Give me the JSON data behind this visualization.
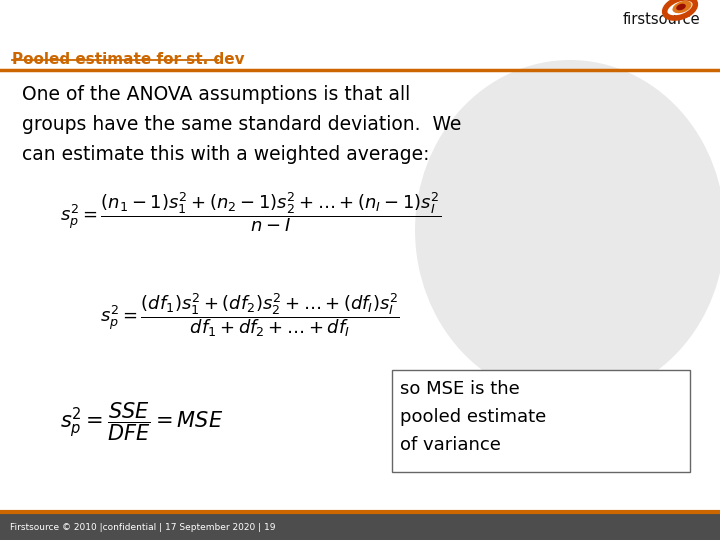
{
  "background_color": "#ffffff",
  "footer_bg_color": "#4d4d4d",
  "title_text": "Pooled estimate for st. dev",
  "title_color": "#CC6600",
  "body_line1": "One of the ANOVA assumptions is that all",
  "body_line2": "groups have the same standard deviation.  We",
  "body_line3": "can estimate this with a weighted average:",
  "body_color": "#000000",
  "header_line_color": "#CC6600",
  "footer_line_color": "#CC6600",
  "footer_text": "Firstsource © 2010 |confidential | 17 September 2020 | 19",
  "formula1": "$s_p^2 = \\dfrac{(n_1-1)s_1^2 + (n_2-1)s_2^2 + \\ldots+ (n_I-1)s_I^2}{n - I}$",
  "formula2": "$s_p^2 = \\dfrac{(df_1)s_1^2 + (df_2)s_2^2 + \\ldots+ (df_I)s_I^2}{df_1 + df_2 + \\ldots+ df_I}$",
  "formula3": "$s_p^2 = \\dfrac{SSE}{DFE} = MSE$",
  "note_line1": "so MSE is the",
  "note_line2": "pooled estimate",
  "note_line3": "of variance",
  "note_box_color": "#ffffff",
  "note_border_color": "#666666",
  "circle_color": "#d4d4d4",
  "orange_color": "#CC6600"
}
